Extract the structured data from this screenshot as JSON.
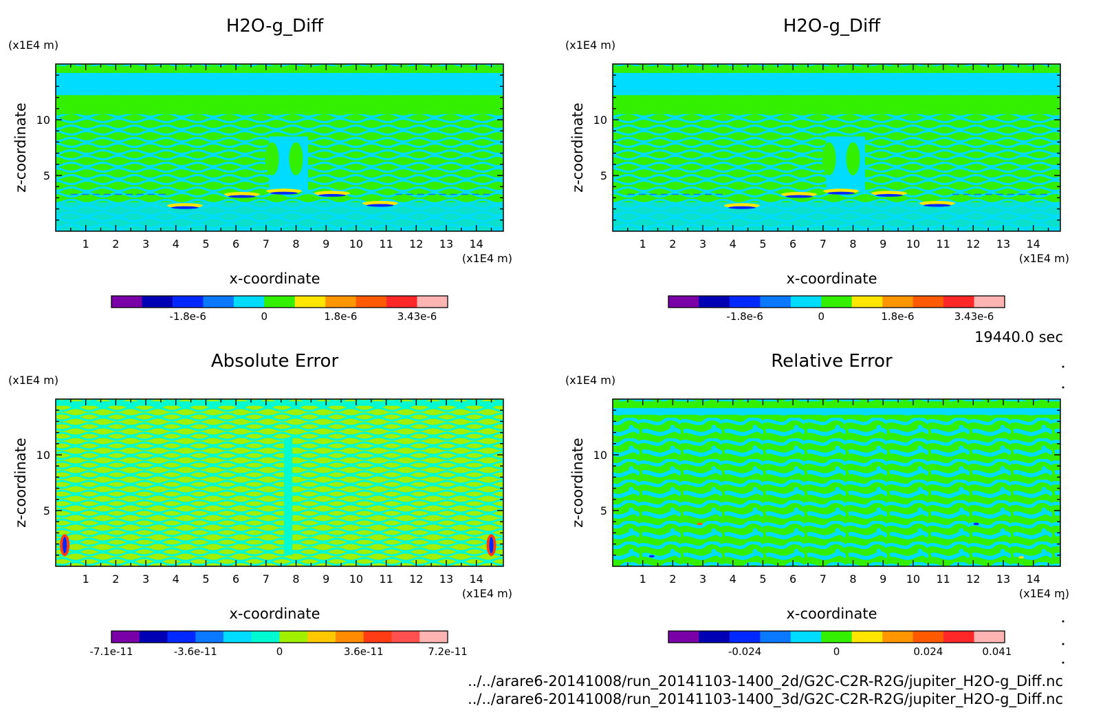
{
  "chart_data": [
    {
      "type": "heatmap",
      "title": "H2O-g_Diff",
      "xlabel": "x-coordinate",
      "ylabel": "z-coordinate",
      "x_unit": "(x1E4 m)",
      "y_unit": "(x1E4 m)",
      "xlim": [
        0,
        14.9
      ],
      "ylim": [
        0,
        15
      ],
      "x_ticks": [
        "1",
        "2",
        "3",
        "4",
        "5",
        "6",
        "7",
        "8",
        "9",
        "10",
        "11",
        "12",
        "13",
        "14"
      ],
      "y_ticks": [
        "5",
        "10"
      ],
      "pattern": "diff",
      "colorbar": {
        "colors": [
          "#7a00a8",
          "#0000b4",
          "#0028ff",
          "#0a78ff",
          "#00dcff",
          "#32f000",
          "#ffe600",
          "#ff9600",
          "#ff5a00",
          "#ff2828",
          "#ffb4b4"
        ],
        "tick_labels": [
          "-1.8e-6",
          "0",
          "1.8e-6",
          "3.43e-6"
        ],
        "tick_positions": [
          2.5,
          5,
          7.5,
          10
        ],
        "range": [
          -4.5e-06,
          3.43e-06
        ]
      }
    },
    {
      "type": "heatmap",
      "title": "H2O-g_Diff",
      "xlabel": "x-coordinate",
      "ylabel": "z-coordinate",
      "x_unit": "(x1E4 m)",
      "y_unit": "(x1E4 m)",
      "xlim": [
        0,
        14.9
      ],
      "ylim": [
        0,
        15
      ],
      "x_ticks": [
        "1",
        "2",
        "3",
        "4",
        "5",
        "6",
        "7",
        "8",
        "9",
        "10",
        "11",
        "12",
        "13",
        "14"
      ],
      "y_ticks": [
        "5",
        "10"
      ],
      "pattern": "diff",
      "colorbar": {
        "colors": [
          "#7a00a8",
          "#0000b4",
          "#0028ff",
          "#0a78ff",
          "#00dcff",
          "#32f000",
          "#ffe600",
          "#ff9600",
          "#ff5a00",
          "#ff2828",
          "#ffb4b4"
        ],
        "tick_labels": [
          "-1.8e-6",
          "0",
          "1.8e-6",
          "3.43e-6"
        ],
        "tick_positions": [
          2.5,
          5,
          7.5,
          10
        ],
        "range": [
          -4.5e-06,
          3.43e-06
        ]
      }
    },
    {
      "type": "heatmap",
      "title": "Absolute Error",
      "xlabel": "x-coordinate",
      "ylabel": "z-coordinate",
      "x_unit": "(x1E4 m)",
      "y_unit": "(x1E4 m)",
      "xlim": [
        0,
        14.9
      ],
      "ylim": [
        0,
        15
      ],
      "x_ticks": [
        "1",
        "2",
        "3",
        "4",
        "5",
        "6",
        "7",
        "8",
        "9",
        "10",
        "11",
        "12",
        "13",
        "14"
      ],
      "y_ticks": [
        "5",
        "10"
      ],
      "pattern": "abs",
      "colorbar": {
        "colors": [
          "#7a00a8",
          "#0000b4",
          "#0028ff",
          "#0a78ff",
          "#00dcff",
          "#00fad2",
          "#a0f000",
          "#ffc800",
          "#ff8c00",
          "#ff3c14",
          "#ff5050",
          "#ffb4b4"
        ],
        "tick_labels": [
          "-7.1e-11",
          "-3.6e-11",
          "0",
          "3.6e-11",
          "7.2e-11"
        ],
        "tick_positions": [
          0,
          3,
          6,
          9,
          12
        ],
        "range": [
          -7.1e-11,
          7.2e-11
        ]
      }
    },
    {
      "type": "heatmap",
      "title": "Relative Error",
      "xlabel": "x-coordinate",
      "ylabel": "z-coordinate",
      "x_unit": "(x1E4 m)",
      "y_unit": "(x1E4 m)",
      "xlim": [
        0,
        14.9
      ],
      "ylim": [
        0,
        15
      ],
      "x_ticks": [
        "1",
        "2",
        "3",
        "4",
        "5",
        "6",
        "7",
        "8",
        "9",
        "10",
        "11",
        "12",
        "13",
        "14"
      ],
      "y_ticks": [
        "5",
        "10"
      ],
      "pattern": "rel",
      "colorbar": {
        "colors": [
          "#7a00a8",
          "#0000b4",
          "#0028ff",
          "#0a78ff",
          "#00dcff",
          "#32f000",
          "#ffe600",
          "#ff9600",
          "#ff5a00",
          "#ff2828",
          "#ffb4b4"
        ],
        "tick_labels": [
          "-0.024",
          "0",
          "0.024",
          "0.041"
        ],
        "tick_positions": [
          2.5,
          5.5,
          8.5,
          10.75
        ],
        "range": [
          -0.041,
          0.041
        ]
      }
    }
  ],
  "time_label": "19440.0 sec",
  "files": [
    "../../arare6-20141008/run_20141103-1400_2d/G2C-C2R-R2G/jupiter_H2O-g_Diff.nc",
    "../../arare6-20141008/run_20141103-1400_3d/G2C-C2R-R2G/jupiter_H2O-g_Diff.nc"
  ]
}
